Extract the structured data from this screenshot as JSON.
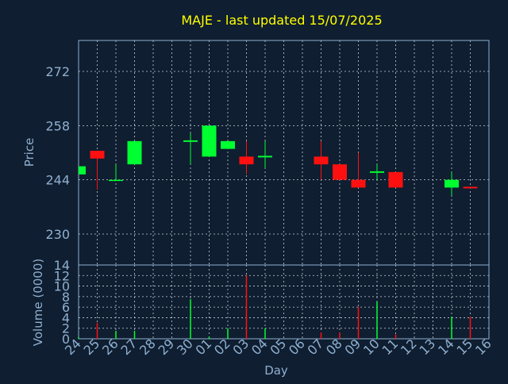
{
  "title": "MAJE - last updated 15/07/2025",
  "colors": {
    "background": "#0f1e30",
    "axis": "#8fb0d0",
    "grid": "#c8d0d8",
    "title": "#ffff00",
    "up": "#00ff30",
    "down": "#ff1010"
  },
  "chart_data": [
    {
      "type": "candlestick",
      "title": "MAJE - last updated 15/07/2025",
      "xlabel": "",
      "ylabel": "Price",
      "ylim": [
        222,
        280
      ],
      "yticks": [
        230,
        244,
        258,
        272
      ],
      "grid": true,
      "categories": [
        "24",
        "25",
        "26",
        "27",
        "28",
        "29",
        "30",
        "01",
        "02",
        "03",
        "04",
        "05",
        "06",
        "07",
        "08",
        "09",
        "10",
        "11",
        "12",
        "13",
        "14",
        "15",
        "16"
      ],
      "candles": [
        {
          "x": "24",
          "open": 245.4,
          "high": 247.5,
          "low": 245.4,
          "close": 247.5
        },
        {
          "x": "25",
          "open": 251.5,
          "high": 251.5,
          "low": 241.5,
          "close": 249.5
        },
        {
          "x": "26",
          "open": 243.8,
          "high": 248.0,
          "low": 243.8,
          "close": 244.0
        },
        {
          "x": "27",
          "open": 248.0,
          "high": 254.0,
          "low": 248.0,
          "close": 254.0
        },
        {
          "x": "30",
          "open": 253.8,
          "high": 256.0,
          "low": 248.0,
          "close": 254.2
        },
        {
          "x": "01",
          "open": 250.0,
          "high": 258.0,
          "low": 250.0,
          "close": 258.0
        },
        {
          "x": "02",
          "open": 252.0,
          "high": 254.0,
          "low": 252.0,
          "close": 254.0
        },
        {
          "x": "03",
          "open": 250.0,
          "high": 254.0,
          "low": 245.5,
          "close": 248.0
        },
        {
          "x": "04",
          "open": 249.8,
          "high": 254.0,
          "low": 247.0,
          "close": 250.2
        },
        {
          "x": "07",
          "open": 250.0,
          "high": 254.0,
          "low": 244.0,
          "close": 248.0
        },
        {
          "x": "08",
          "open": 248.0,
          "high": 248.0,
          "low": 244.0,
          "close": 244.0
        },
        {
          "x": "09",
          "open": 244.0,
          "high": 251.0,
          "low": 242.0,
          "close": 242.0
        },
        {
          "x": "10",
          "open": 245.8,
          "high": 248.0,
          "low": 244.0,
          "close": 246.2
        },
        {
          "x": "11",
          "open": 246.0,
          "high": 246.0,
          "low": 242.0,
          "close": 242.0
        },
        {
          "x": "14",
          "open": 242.0,
          "high": 246.0,
          "low": 240.0,
          "close": 244.0
        },
        {
          "x": "15",
          "open": 242.2,
          "high": 242.2,
          "low": 241.8,
          "close": 241.8
        }
      ]
    },
    {
      "type": "bar",
      "xlabel": "Day",
      "ylabel": "Volume (0000)",
      "ylim": [
        0,
        14
      ],
      "yticks": [
        0,
        2,
        4,
        6,
        8,
        10,
        12,
        14
      ],
      "grid": true,
      "categories": [
        "24",
        "25",
        "26",
        "27",
        "28",
        "29",
        "30",
        "01",
        "02",
        "03",
        "04",
        "05",
        "06",
        "07",
        "08",
        "09",
        "10",
        "11",
        "12",
        "13",
        "14",
        "15",
        "16"
      ],
      "bars": [
        {
          "x": "24",
          "value": 0.3,
          "direction": "up"
        },
        {
          "x": "25",
          "value": 3.0,
          "direction": "down"
        },
        {
          "x": "26",
          "value": 1.5,
          "direction": "up"
        },
        {
          "x": "27",
          "value": 1.5,
          "direction": "up"
        },
        {
          "x": "30",
          "value": 7.5,
          "direction": "up"
        },
        {
          "x": "01",
          "value": 0.4,
          "direction": "up"
        },
        {
          "x": "02",
          "value": 2.0,
          "direction": "up"
        },
        {
          "x": "03",
          "value": 12.0,
          "direction": "down"
        },
        {
          "x": "04",
          "value": 2.0,
          "direction": "up"
        },
        {
          "x": "07",
          "value": 1.2,
          "direction": "down"
        },
        {
          "x": "08",
          "value": 1.2,
          "direction": "down"
        },
        {
          "x": "09",
          "value": 6.0,
          "direction": "down"
        },
        {
          "x": "10",
          "value": 7.0,
          "direction": "up"
        },
        {
          "x": "11",
          "value": 0.8,
          "direction": "down"
        },
        {
          "x": "14",
          "value": 4.2,
          "direction": "up"
        },
        {
          "x": "15",
          "value": 4.2,
          "direction": "down"
        }
      ]
    }
  ]
}
